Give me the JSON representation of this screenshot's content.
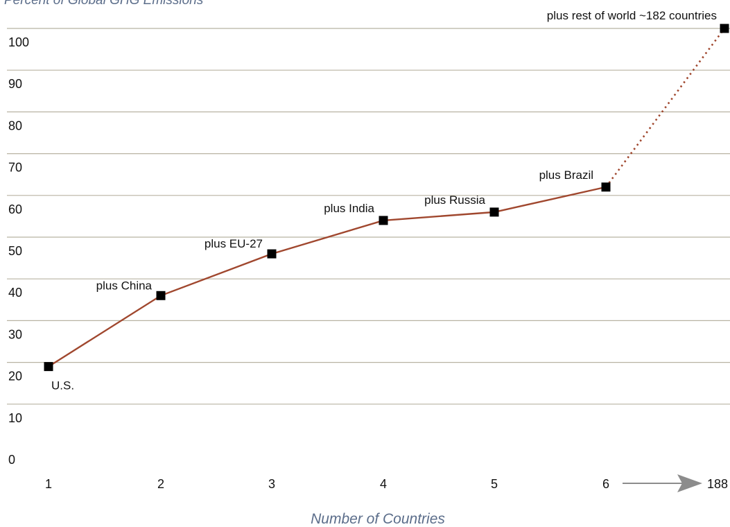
{
  "chart_data": {
    "type": "line",
    "ylabel": "Percent of Global GHG Emissions",
    "xlabel": "Number of Countries",
    "ylim": [
      0,
      100
    ],
    "yticks": [
      "0",
      "10",
      "20",
      "30",
      "40",
      "50",
      "60",
      "70",
      "80",
      "90",
      "100"
    ],
    "x_categories": [
      "1",
      "2",
      "3",
      "4",
      "5",
      "6",
      "188"
    ],
    "grid": true,
    "colors": {
      "line": "#a0472e",
      "marker": "#000000",
      "grid": "#b8b3a2",
      "axis_label": "#5b6d8a",
      "arrow": "#8c8c8c"
    },
    "series": [
      {
        "points": [
          {
            "x": "1",
            "y": 19,
            "label": "U.S."
          },
          {
            "x": "2",
            "y": 36,
            "label": "plus China"
          },
          {
            "x": "3",
            "y": 46,
            "label": "plus EU-27"
          },
          {
            "x": "4",
            "y": 54,
            "label": "plus India"
          },
          {
            "x": "5",
            "y": 56,
            "label": "plus Russia"
          },
          {
            "x": "6",
            "y": 62,
            "label": "plus Brazil"
          },
          {
            "x": "188",
            "y": 100,
            "label": "plus rest of world ~182 countries"
          }
        ],
        "dotted_last_segment": true
      }
    ],
    "axis_break_arrow": "between 6 and 188"
  }
}
